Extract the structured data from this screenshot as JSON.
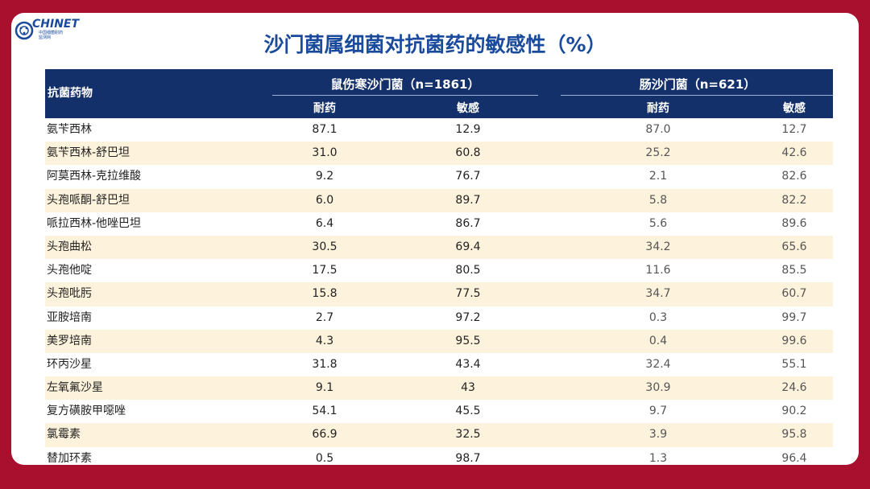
{
  "logo": {
    "text": "CHINET",
    "sub1": "中国细菌耐药",
    "sub2": "监测网"
  },
  "title": "沙门菌属细菌对抗菌药的敏感性（%）",
  "colors": {
    "background": "#a8102e",
    "header": "#14306b",
    "title": "#1a4a9c",
    "alt_row": "#fdf3dc"
  },
  "table": {
    "drug_header": "抗菌药物",
    "groups": [
      {
        "label": "鼠伤寒沙门菌（n=1861）",
        "resistant": "耐药",
        "sensitive": "敏感"
      },
      {
        "label": "肠沙门菌（n=621）",
        "resistant": "耐药",
        "sensitive": "敏感"
      }
    ],
    "rows": [
      {
        "drug": "氨苄西林",
        "v": [
          "87.1",
          "12.9",
          "87.0",
          "12.7"
        ]
      },
      {
        "drug": "氨苄西林-舒巴坦",
        "v": [
          "31.0",
          "60.8",
          "25.2",
          "42.6"
        ]
      },
      {
        "drug": "阿莫西林-克拉维酸",
        "v": [
          "9.2",
          "76.7",
          "2.1",
          "82.6"
        ]
      },
      {
        "drug": "头孢哌酮-舒巴坦",
        "v": [
          "6.0",
          "89.7",
          "5.8",
          "82.2"
        ]
      },
      {
        "drug": "哌拉西林-他唑巴坦",
        "v": [
          "6.4",
          "86.7",
          "5.6",
          "89.6"
        ]
      },
      {
        "drug": "头孢曲松",
        "v": [
          "30.5",
          "69.4",
          "34.2",
          "65.6"
        ]
      },
      {
        "drug": "头孢他啶",
        "v": [
          "17.5",
          "80.5",
          "11.6",
          "85.5"
        ]
      },
      {
        "drug": "头孢吡肟",
        "v": [
          "15.8",
          "77.5",
          "34.7",
          "60.7"
        ]
      },
      {
        "drug": "亚胺培南",
        "v": [
          "2.7",
          "97.2",
          "0.3",
          "99.7"
        ]
      },
      {
        "drug": "美罗培南",
        "v": [
          "4.3",
          "95.5",
          "0.4",
          "99.6"
        ]
      },
      {
        "drug": "环丙沙星",
        "v": [
          "31.8",
          "43.4",
          "32.4",
          "55.1"
        ]
      },
      {
        "drug": "左氧氟沙星",
        "v": [
          "9.1",
          "43",
          "30.9",
          "24.6"
        ]
      },
      {
        "drug": "复方磺胺甲噁唑",
        "v": [
          "54.1",
          "45.5",
          "9.7",
          "90.2"
        ]
      },
      {
        "drug": "氯霉素",
        "v": [
          "66.9",
          "32.5",
          "3.9",
          "95.8"
        ]
      },
      {
        "drug": "替加环素",
        "v": [
          "0.5",
          "98.7",
          "1.3",
          "96.4"
        ]
      }
    ]
  }
}
